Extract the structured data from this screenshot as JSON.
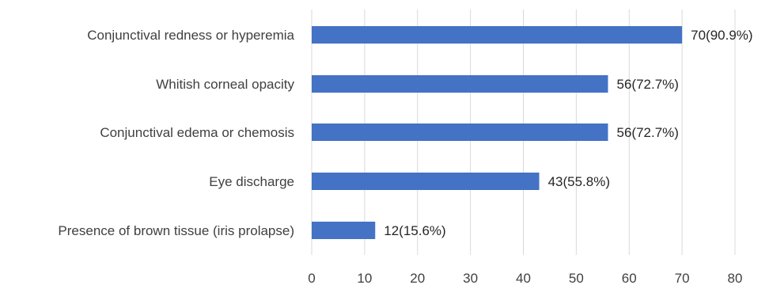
{
  "chart_data": {
    "type": "bar",
    "orientation": "horizontal",
    "categories": [
      "Conjunctival redness or hyperemia",
      "Whitish corneal opacity",
      "Conjunctival edema or chemosis",
      "Eye discharge",
      "Presence of brown tissue (iris prolapse)"
    ],
    "values": [
      70,
      56,
      56,
      43,
      12
    ],
    "data_labels": [
      "70(90.9%)",
      "56(72.7%)",
      "56(72.7%)",
      "43(55.8%)",
      "12(15.6%)"
    ],
    "percentages": [
      90.9,
      72.7,
      72.7,
      55.8,
      15.6
    ],
    "xlim": [
      0,
      80
    ],
    "xticks": [
      0,
      10,
      20,
      30,
      40,
      50,
      60,
      70,
      80
    ],
    "title": "",
    "xlabel": "",
    "ylabel": "",
    "grid": true,
    "bar_color": "#4472c4",
    "grid_color": "#d9d9d9"
  }
}
